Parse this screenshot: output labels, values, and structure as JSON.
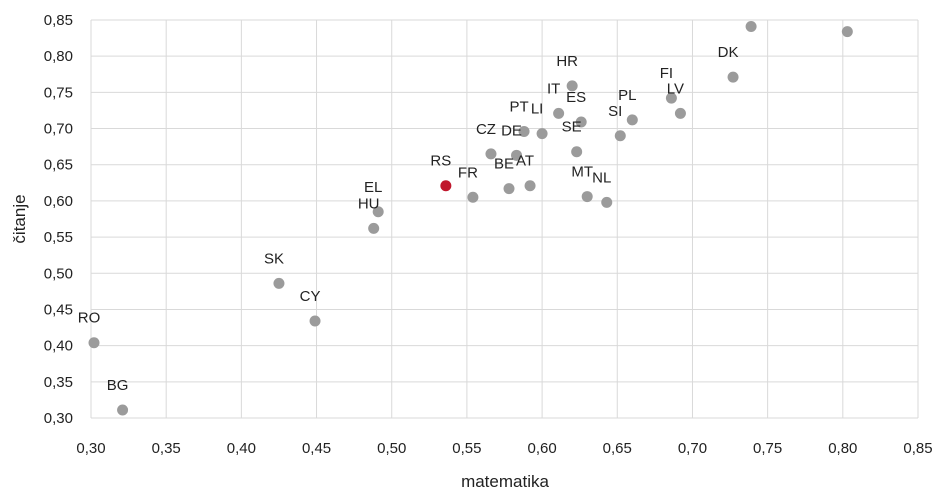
{
  "chart_data": {
    "type": "scatter",
    "title": "",
    "xlabel": "matematika",
    "ylabel": "čitanje",
    "xlim": [
      0.3,
      0.85
    ],
    "ylim": [
      0.3,
      0.85
    ],
    "grid": true,
    "xticks": [
      "0,30",
      "0,35",
      "0,40",
      "0,45",
      "0,50",
      "0,55",
      "0,60",
      "0,65",
      "0,70",
      "0,75",
      "0,80",
      "0,85"
    ],
    "yticks": [
      "0,30",
      "0,35",
      "0,40",
      "0,45",
      "0,50",
      "0,55",
      "0,60",
      "0,65",
      "0,70",
      "0,75",
      "0,80",
      "0,85"
    ],
    "colors": {
      "default": "#9b9b9b",
      "highlight": "#c0172d"
    },
    "points": [
      {
        "label": "RO",
        "x": 0.302,
        "y": 0.404
      },
      {
        "label": "BG",
        "x": 0.321,
        "y": 0.311
      },
      {
        "label": "SK",
        "x": 0.425,
        "y": 0.486
      },
      {
        "label": "CY",
        "x": 0.449,
        "y": 0.434
      },
      {
        "label": "HU",
        "x": 0.488,
        "y": 0.562
      },
      {
        "label": "EL",
        "x": 0.491,
        "y": 0.585
      },
      {
        "label": "RS",
        "x": 0.536,
        "y": 0.621,
        "highlight": true
      },
      {
        "label": "FR",
        "x": 0.554,
        "y": 0.605
      },
      {
        "label": "CZ",
        "x": 0.566,
        "y": 0.665
      },
      {
        "label": "BE",
        "x": 0.578,
        "y": 0.617
      },
      {
        "label": "DE",
        "x": 0.583,
        "y": 0.663
      },
      {
        "label": "PT",
        "x": 0.588,
        "y": 0.696
      },
      {
        "label": "AT",
        "x": 0.592,
        "y": 0.621
      },
      {
        "label": "LI",
        "x": 0.6,
        "y": 0.693
      },
      {
        "label": "IT",
        "x": 0.611,
        "y": 0.721
      },
      {
        "label": "HR",
        "x": 0.62,
        "y": 0.759
      },
      {
        "label": "SE",
        "x": 0.623,
        "y": 0.668
      },
      {
        "label": "ES",
        "x": 0.626,
        "y": 0.709
      },
      {
        "label": "MT",
        "x": 0.63,
        "y": 0.606
      },
      {
        "label": "NL",
        "x": 0.643,
        "y": 0.598
      },
      {
        "label": "SI",
        "x": 0.652,
        "y": 0.69
      },
      {
        "label": "PL",
        "x": 0.66,
        "y": 0.712
      },
      {
        "label": "FI",
        "x": 0.686,
        "y": 0.742
      },
      {
        "label": "LV",
        "x": 0.692,
        "y": 0.721
      },
      {
        "label": "DK",
        "x": 0.727,
        "y": 0.771
      },
      {
        "label": "",
        "x": 0.739,
        "y": 0.841
      },
      {
        "label": "",
        "x": 0.803,
        "y": 0.834
      }
    ]
  }
}
